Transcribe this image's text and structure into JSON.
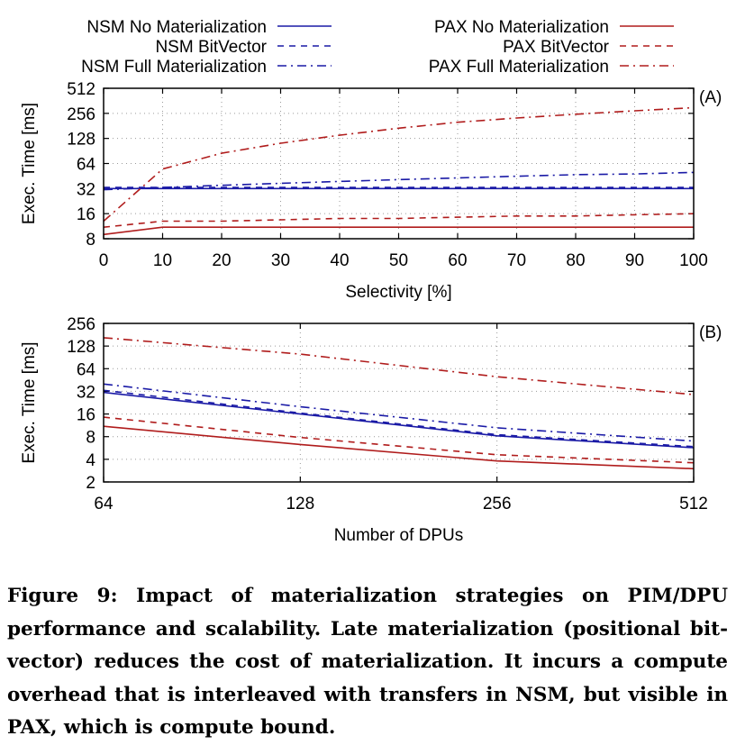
{
  "legend": {
    "position": "top",
    "entries": [
      {
        "label": "NSM No Materialization",
        "color": "#1a1aa6",
        "dash": "solid"
      },
      {
        "label": "NSM BitVector",
        "color": "#1a1aa6",
        "dash": "dashed"
      },
      {
        "label": "NSM Full Materialization",
        "color": "#1a1aa6",
        "dash": "dashdot"
      },
      {
        "label": "PAX No Materialization",
        "color": "#b01c1c",
        "dash": "solid"
      },
      {
        "label": "PAX BitVector",
        "color": "#b01c1c",
        "dash": "dashed"
      },
      {
        "label": "PAX Full Materialization",
        "color": "#b01c1c",
        "dash": "dashdot"
      }
    ]
  },
  "chart_data": [
    {
      "type": "line",
      "panel_label": "(A)",
      "xlabel": "Selectivity [%]",
      "ylabel": "Exec. Time [ms]",
      "yscale": "log2",
      "xlim": [
        0,
        100
      ],
      "ylim": [
        8,
        512
      ],
      "xticks": [
        0,
        10,
        20,
        30,
        40,
        50,
        60,
        70,
        80,
        90,
        100
      ],
      "yticks": [
        8,
        16,
        32,
        64,
        128,
        256,
        512
      ],
      "grid": true,
      "x": [
        0,
        10,
        20,
        30,
        40,
        50,
        60,
        70,
        80,
        90,
        100
      ],
      "series": [
        {
          "name": "NSM No Materialization",
          "values": [
            32,
            32,
            32,
            32,
            32,
            32,
            32,
            32,
            32,
            32,
            32
          ]
        },
        {
          "name": "NSM BitVector",
          "values": [
            33,
            33,
            33,
            33,
            33,
            33,
            33,
            33,
            33,
            33,
            33
          ]
        },
        {
          "name": "NSM Full Materialization",
          "values": [
            31,
            33,
            35,
            37,
            39,
            41,
            43,
            45,
            47,
            48,
            50
          ]
        },
        {
          "name": "PAX No Materialization",
          "values": [
            9,
            11,
            11,
            11,
            11,
            11,
            11,
            11,
            11,
            11,
            11
          ]
        },
        {
          "name": "PAX BitVector",
          "values": [
            11,
            13,
            13,
            13.5,
            14,
            14,
            14.5,
            15,
            15,
            15.5,
            16
          ]
        },
        {
          "name": "PAX Full Materialization",
          "values": [
            13,
            55,
            85,
            112,
            140,
            170,
            200,
            225,
            250,
            275,
            300
          ]
        }
      ]
    },
    {
      "type": "line",
      "panel_label": "(B)",
      "xlabel": "Number of DPUs",
      "ylabel": "Exec. Time [ms]",
      "xscale": "log2",
      "yscale": "log2",
      "xlim": [
        64,
        512
      ],
      "ylim": [
        2,
        256
      ],
      "xticks": [
        64,
        128,
        256,
        512
      ],
      "yticks": [
        2,
        4,
        8,
        16,
        32,
        64,
        128,
        256
      ],
      "grid": true,
      "x": [
        64,
        128,
        256,
        512
      ],
      "series": [
        {
          "name": "NSM No Materialization",
          "values": [
            31,
            16,
            8.2,
            5.7
          ]
        },
        {
          "name": "NSM BitVector",
          "values": [
            33,
            16.5,
            8.5,
            5.9
          ]
        },
        {
          "name": "NSM Full Materialization",
          "values": [
            40,
            20,
            10.5,
            7
          ]
        },
        {
          "name": "PAX No Materialization",
          "values": [
            11,
            6.3,
            3.8,
            3
          ]
        },
        {
          "name": "PAX BitVector",
          "values": [
            14.5,
            7.8,
            4.6,
            3.6
          ]
        },
        {
          "name": "PAX Full Materialization",
          "values": [
            165,
            100,
            50,
            29
          ]
        }
      ]
    }
  ],
  "caption": "Figure 9: Impact of materialization strategies on PIM/DPU performance and scalability. Late materialization (positional bit-vector) reduces the cost of materialization. It incurs a compute overhead that is interleaved with transfers in NSM, but visible in PAX, which is compute bound."
}
